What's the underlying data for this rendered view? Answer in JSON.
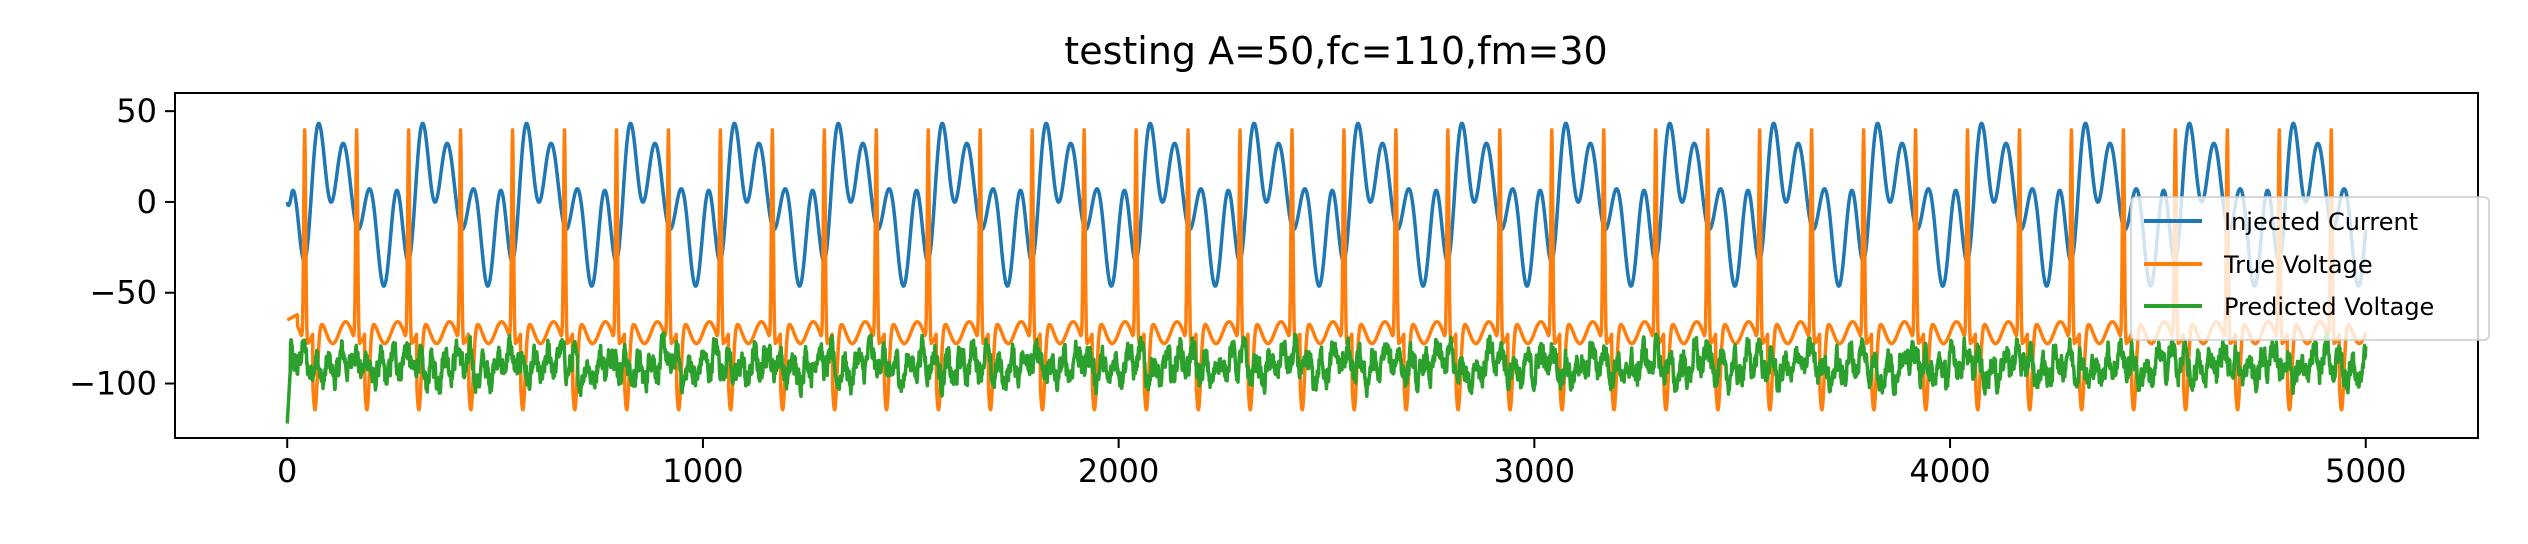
{
  "chart_data": {
    "type": "line",
    "title": "testing A=50,fc=110,fm=30",
    "xlabel": "",
    "ylabel": "",
    "xlim": [
      -270,
      5270
    ],
    "ylim": [
      -130,
      60
    ],
    "xticks": [
      0,
      1000,
      2000,
      3000,
      4000,
      5000
    ],
    "xtick_labels": [
      "0",
      "1000",
      "2000",
      "3000",
      "4000",
      "5000"
    ],
    "yticks": [
      50,
      0,
      -50,
      -100
    ],
    "ytick_labels": [
      "50",
      "0",
      "−50",
      "−100"
    ],
    "grid": false,
    "legend_position": "center-right",
    "series": [
      {
        "name": "Injected Current",
        "color": "#1f77b4",
        "x_range": [
          0,
          5000
        ],
        "n_points": 5001,
        "description_values": {
          "min": -48,
          "max": 50,
          "approx_cycle_length": 250,
          "peak_value": 50,
          "first_value": 0
        }
      },
      {
        "name": "True Voltage",
        "color": "#ff7f0e",
        "x_range": [
          0,
          5000
        ],
        "n_points": 5001,
        "description_values": {
          "min": -120,
          "max": 48,
          "resting": -72,
          "spike_peak": 45,
          "first_value": -65
        }
      },
      {
        "name": "Predicted Voltage",
        "color": "#2ca02c",
        "x_range": [
          0,
          5000
        ],
        "n_points": 5001,
        "description_values": {
          "min": -122,
          "max": -72,
          "mean": -90,
          "first_value": -122
        }
      }
    ]
  }
}
